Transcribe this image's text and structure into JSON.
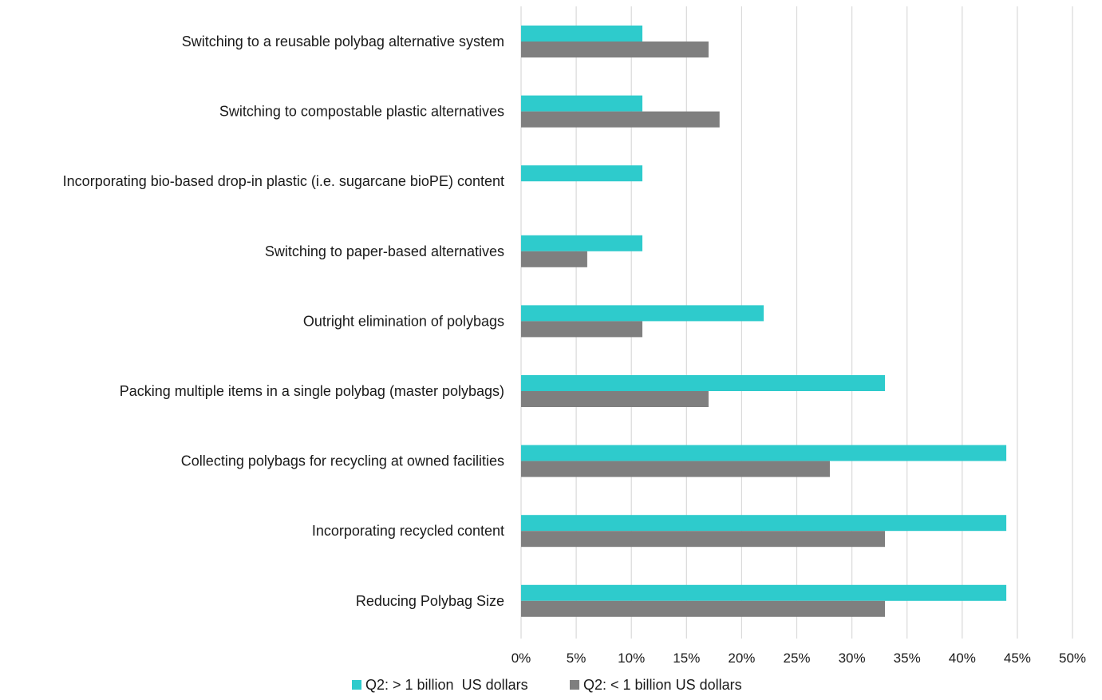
{
  "chart_data": {
    "type": "bar",
    "orientation": "horizontal",
    "categories": [
      "Switching to a reusable polybag alternative system",
      "Switching to compostable plastic alternatives",
      "Incorporating bio-based drop-in plastic (i.e. sugarcane bioPE) content",
      "Switching to paper-based alternatives",
      "Outright elimination of polybags",
      "Packing multiple items in a single polybag (master polybags)",
      "Collecting polybags for recycling at owned facilities",
      "Incorporating recycled content",
      "Reducing Polybag Size"
    ],
    "series": [
      {
        "name": "Q2: > 1 billion  US dollars",
        "color": "#2ecbcc",
        "values": [
          11,
          11,
          11,
          11,
          22,
          33,
          44,
          44,
          44
        ]
      },
      {
        "name": "Q2: < 1 billion US dollars",
        "color": "#7f7f7f",
        "values": [
          17,
          18,
          0,
          6,
          11,
          17,
          28,
          33,
          33
        ]
      }
    ],
    "xlim": [
      0,
      50
    ],
    "xticks": [
      0,
      5,
      10,
      15,
      20,
      25,
      30,
      35,
      40,
      45,
      50
    ],
    "tick_labels": [
      "0%",
      "5%",
      "10%",
      "15%",
      "20%",
      "25%",
      "30%",
      "35%",
      "40%",
      "45%",
      "50%"
    ],
    "gridlines": "vertical",
    "legend_position": "bottom",
    "title": "",
    "xlabel": "",
    "ylabel": ""
  }
}
